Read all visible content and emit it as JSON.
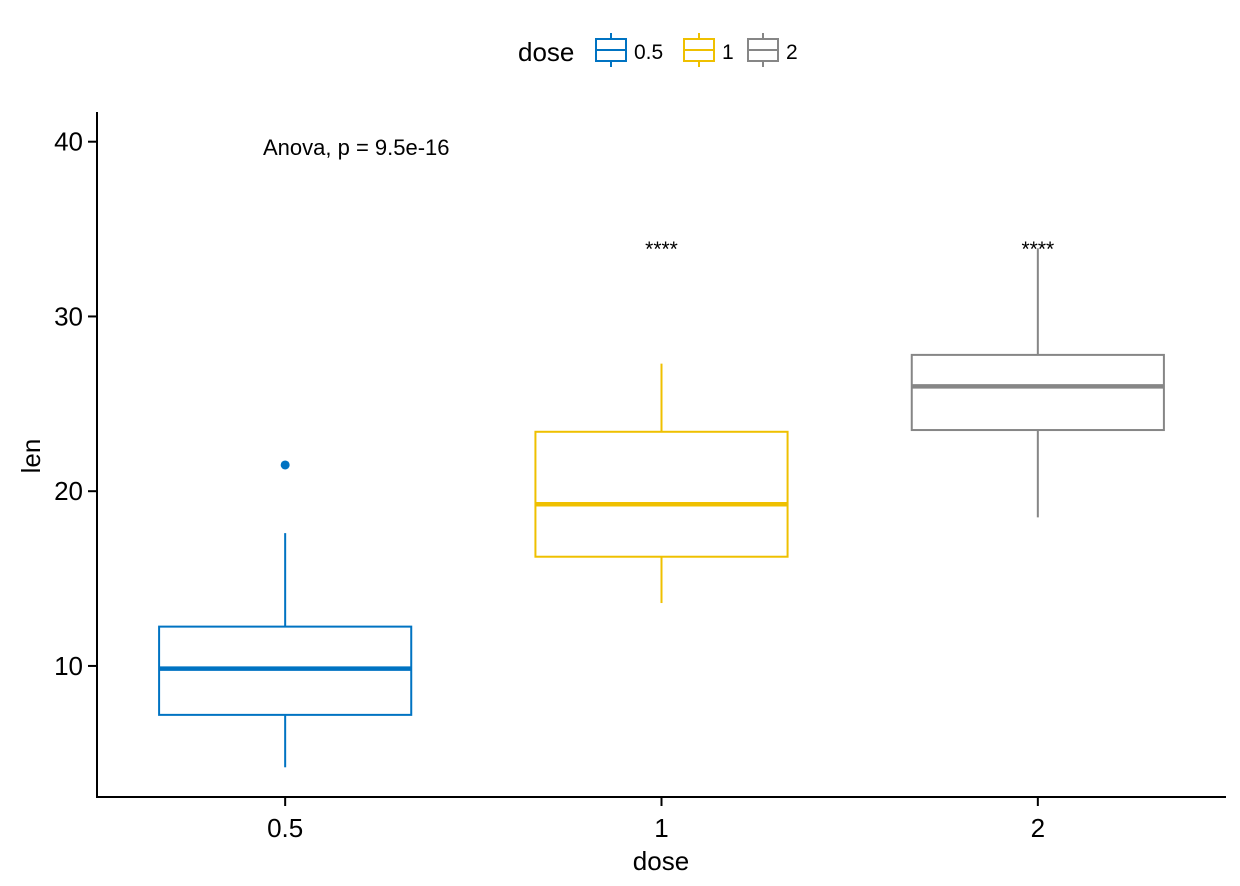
{
  "chart_data": {
    "type": "box",
    "xlabel": "dose",
    "ylabel": "len",
    "categories": [
      "0.5",
      "1",
      "2"
    ],
    "ylim": [
      2.5,
      41.7
    ],
    "yticks": [
      10,
      20,
      30,
      40
    ],
    "legend": {
      "title": "dose",
      "position": "top",
      "items": [
        {
          "label": "0.5",
          "color": "#0073C2"
        },
        {
          "label": "1",
          "color": "#EFC000"
        },
        {
          "label": "2",
          "color": "#868686"
        }
      ]
    },
    "annotation": "Anova, p = 9.5e-16",
    "series": [
      {
        "category": "0.5",
        "color": "#0073C2",
        "whisker_low": 4.2,
        "q1": 7.2,
        "median": 9.85,
        "q3": 12.25,
        "whisker_high": 17.6,
        "outliers": [
          21.5
        ],
        "significance": ""
      },
      {
        "category": "1",
        "color": "#EFC000",
        "whisker_low": 13.6,
        "q1": 16.25,
        "median": 19.25,
        "q3": 23.4,
        "whisker_high": 27.3,
        "outliers": [],
        "significance": "****"
      },
      {
        "category": "2",
        "color": "#868686",
        "whisker_low": 18.5,
        "q1": 23.5,
        "median": 26.0,
        "q3": 27.8,
        "whisker_high": 33.9,
        "outliers": [],
        "significance": "****"
      }
    ],
    "grid": false
  }
}
